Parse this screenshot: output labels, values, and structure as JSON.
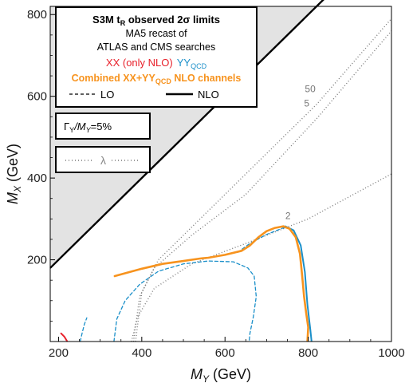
{
  "chart_data": {
    "type": "line",
    "title": "S3M t",
    "title_sub": "R",
    "title_rest": " observed 2σ limits",
    "subtitle_lines": [
      "MA5 recast of",
      "ATLAS and CMS searches"
    ],
    "legend": {
      "xx": "XX (only NLO)",
      "yy": "YY",
      "yy_sub": "QCD",
      "combined": "Combined XX+YY",
      "combined_sub": "QCD",
      "combined_rest": " NLO channels",
      "lo": "LO",
      "nlo": "NLO",
      "width_ratio": "Γ",
      "width_ratio_sub1": "Y",
      "width_ratio_mid": "/M",
      "width_ratio_sub2": "Y",
      "width_ratio_rest": "=5%",
      "lambda": "λ"
    },
    "xlabel": "M",
    "xlabel_sub": "Y",
    "xlabel_unit": " (GeV)",
    "ylabel": "M",
    "ylabel_sub": "X",
    "ylabel_unit": " (GeV)",
    "xlim": [
      180,
      1000
    ],
    "ylim": [
      0,
      820
    ],
    "xticks": [
      200,
      400,
      600,
      800,
      1000
    ],
    "yticks": [
      200,
      400,
      600,
      800
    ],
    "grid": false,
    "excluded_region": "M_X > M_Y",
    "lambda_contours": [
      {
        "label": "2",
        "points": [
          [
            375,
            0
          ],
          [
            390,
            60
          ],
          [
            430,
            130
          ],
          [
            520,
            190
          ],
          [
            650,
            240
          ],
          [
            800,
            300
          ],
          [
            1000,
            410
          ]
        ]
      },
      {
        "label": "5",
        "points": [
          [
            380,
            0
          ],
          [
            395,
            110
          ],
          [
            430,
            180
          ],
          [
            520,
            260
          ],
          [
            650,
            360
          ],
          [
            820,
            545
          ],
          [
            1000,
            760
          ]
        ]
      },
      {
        "label": "50",
        "points": [
          [
            385,
            0
          ],
          [
            400,
            120
          ],
          [
            440,
            200
          ],
          [
            530,
            290
          ],
          [
            650,
            410
          ],
          [
            820,
            580
          ],
          [
            1000,
            790
          ]
        ]
      }
    ],
    "series": [
      {
        "name": "XX (only NLO)",
        "color": "#e8212b",
        "style": "solid",
        "points": [
          [
            206,
            20
          ],
          [
            214,
            12
          ],
          [
            221,
            0
          ]
        ]
      },
      {
        "name": "YY_QCD LO",
        "color": "#1a8fc9",
        "style": "dashed",
        "points": [
          [
            252,
            0
          ],
          [
            257,
            22
          ],
          [
            262,
            42
          ],
          [
            268,
            58
          ]
        ]
      },
      {
        "name": "YY_QCD LO inner",
        "color": "#1a8fc9",
        "style": "dashed",
        "points": [
          [
            333,
            0
          ],
          [
            340,
            55
          ],
          [
            360,
            100
          ],
          [
            395,
            140
          ],
          [
            440,
            172
          ],
          [
            500,
            190
          ],
          [
            560,
            197
          ],
          [
            620,
            195
          ],
          [
            655,
            180
          ],
          [
            670,
            160
          ],
          [
            675,
            110
          ],
          [
            668,
            60
          ],
          [
            660,
            20
          ],
          [
            658,
            0
          ]
        ]
      },
      {
        "name": "YY_QCD LO outer",
        "color": "#1a8fc9",
        "style": "dashed",
        "points": [
          [
            630,
            218
          ],
          [
            660,
            240
          ],
          [
            700,
            262
          ],
          [
            740,
            278
          ],
          [
            760,
            276
          ]
        ]
      },
      {
        "name": "YY_QCD NLO",
        "color": "#1a8fc9",
        "style": "solid",
        "points": [
          [
            745,
            282
          ],
          [
            765,
            272
          ],
          [
            782,
            235
          ],
          [
            792,
            170
          ],
          [
            798,
            90
          ],
          [
            805,
            30
          ],
          [
            808,
            0
          ]
        ]
      },
      {
        "name": "Combined XX+YY_QCD NLO channels",
        "color": "#f7931e",
        "style": "solid",
        "points": [
          [
            335,
            160
          ],
          [
            400,
            178
          ],
          [
            450,
            190
          ],
          [
            500,
            197
          ],
          [
            540,
            203
          ],
          [
            560,
            205
          ],
          [
            600,
            212
          ],
          [
            640,
            222
          ],
          [
            660,
            235
          ],
          [
            680,
            255
          ],
          [
            700,
            270
          ],
          [
            720,
            278
          ],
          [
            740,
            282
          ],
          [
            755,
            276
          ],
          [
            770,
            255
          ],
          [
            780,
            215
          ],
          [
            785,
            165
          ],
          [
            790,
            110
          ],
          [
            795,
            70
          ],
          [
            800,
            35
          ],
          [
            798,
            0
          ]
        ]
      }
    ]
  }
}
